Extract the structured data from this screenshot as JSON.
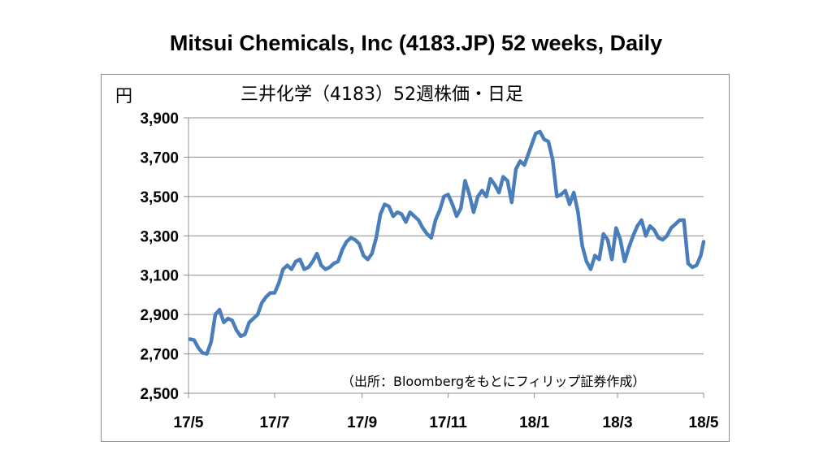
{
  "header": {
    "title": "Mitsui Chemicals, Inc (4183.JP) 52 weeks, Daily"
  },
  "chart_data": {
    "type": "line",
    "title": "三井化学（4183）52週株価・日足",
    "ylabel": "円",
    "source": "（出所：Bloombergをもとにフィリップ証券作成）",
    "ylim": [
      2500,
      3900
    ],
    "yticks": [
      2500,
      2700,
      2900,
      3100,
      3300,
      3500,
      3700,
      3900
    ],
    "ytick_labels": [
      "2,500",
      "2,700",
      "2,900",
      "3,100",
      "3,300",
      "3,500",
      "3,700",
      "3,900"
    ],
    "xlim": [
      "2017-05-01",
      "2018-05-01"
    ],
    "xticks": [
      "2017-05-01",
      "2017-07-01",
      "2017-09-01",
      "2017-11-01",
      "2018-01-01",
      "2018-03-01",
      "2018-05-01"
    ],
    "xtick_labels": [
      "17/5",
      "17/7",
      "17/9",
      "17/11",
      "18/1",
      "18/3",
      "18/5"
    ],
    "grid": true,
    "line_color": "#4a7ebb",
    "series": [
      {
        "x": [
          "2017-05-02",
          "2017-05-05",
          "2017-05-08",
          "2017-05-11",
          "2017-05-14",
          "2017-05-17",
          "2017-05-20",
          "2017-05-23",
          "2017-05-26",
          "2017-05-29",
          "2017-06-01",
          "2017-06-04",
          "2017-06-07",
          "2017-06-10",
          "2017-06-13",
          "2017-06-16",
          "2017-06-19",
          "2017-06-22",
          "2017-06-25",
          "2017-06-28",
          "2017-07-01",
          "2017-07-04",
          "2017-07-07",
          "2017-07-10",
          "2017-07-13",
          "2017-07-16",
          "2017-07-19",
          "2017-07-22",
          "2017-07-25",
          "2017-07-28",
          "2017-07-31",
          "2017-08-03",
          "2017-08-06",
          "2017-08-09",
          "2017-08-12",
          "2017-08-15",
          "2017-08-18",
          "2017-08-21",
          "2017-08-24",
          "2017-08-27",
          "2017-08-30",
          "2017-09-02",
          "2017-09-05",
          "2017-09-08",
          "2017-09-11",
          "2017-09-14",
          "2017-09-17",
          "2017-09-20",
          "2017-09-23",
          "2017-09-26",
          "2017-09-29",
          "2017-10-02",
          "2017-10-05",
          "2017-10-08",
          "2017-10-11",
          "2017-10-14",
          "2017-10-17",
          "2017-10-20",
          "2017-10-23",
          "2017-10-26",
          "2017-10-29",
          "2017-11-01",
          "2017-11-04",
          "2017-11-07",
          "2017-11-10",
          "2017-11-13",
          "2017-11-16",
          "2017-11-19",
          "2017-11-22",
          "2017-11-25",
          "2017-11-28",
          "2017-12-01",
          "2017-12-04",
          "2017-12-07",
          "2017-12-10",
          "2017-12-13",
          "2017-12-16",
          "2017-12-19",
          "2017-12-22",
          "2017-12-25",
          "2017-12-28",
          "2018-01-02",
          "2018-01-05",
          "2018-01-08",
          "2018-01-11",
          "2018-01-14",
          "2018-01-17",
          "2018-01-20",
          "2018-01-23",
          "2018-01-26",
          "2018-01-29",
          "2018-02-01",
          "2018-02-04",
          "2018-02-07",
          "2018-02-10",
          "2018-02-13",
          "2018-02-16",
          "2018-02-19",
          "2018-02-22",
          "2018-02-25",
          "2018-02-28",
          "2018-03-03",
          "2018-03-06",
          "2018-03-09",
          "2018-03-12",
          "2018-03-15",
          "2018-03-18",
          "2018-03-21",
          "2018-03-24",
          "2018-03-27",
          "2018-03-30",
          "2018-04-02",
          "2018-04-05",
          "2018-04-08",
          "2018-04-11",
          "2018-04-14",
          "2018-04-17",
          "2018-04-20",
          "2018-04-23",
          "2018-04-26",
          "2018-04-29",
          "2018-05-01"
        ],
        "values": [
          2775,
          2770,
          2730,
          2705,
          2700,
          2760,
          2900,
          2925,
          2860,
          2880,
          2870,
          2820,
          2790,
          2800,
          2860,
          2880,
          2900,
          2960,
          2990,
          3010,
          3010,
          3060,
          3130,
          3150,
          3130,
          3170,
          3180,
          3130,
          3140,
          3170,
          3210,
          3150,
          3130,
          3140,
          3160,
          3170,
          3230,
          3270,
          3290,
          3280,
          3260,
          3200,
          3180,
          3210,
          3290,
          3410,
          3460,
          3450,
          3400,
          3420,
          3410,
          3370,
          3420,
          3400,
          3380,
          3340,
          3310,
          3290,
          3380,
          3430,
          3500,
          3510,
          3460,
          3400,
          3440,
          3580,
          3510,
          3420,
          3500,
          3530,
          3500,
          3590,
          3560,
          3520,
          3600,
          3580,
          3470,
          3640,
          3680,
          3660,
          3720,
          3820,
          3830,
          3790,
          3780,
          3690,
          3500,
          3510,
          3530,
          3460,
          3520,
          3420,
          3250,
          3170,
          3130,
          3200,
          3180,
          3310,
          3280,
          3180,
          3340,
          3280,
          3170,
          3240,
          3300,
          3350,
          3380,
          3300,
          3350,
          3330,
          3290,
          3280,
          3300,
          3340,
          3360,
          3380,
          3380,
          3160,
          3140,
          3150,
          3200,
          3270
        ]
      }
    ]
  }
}
